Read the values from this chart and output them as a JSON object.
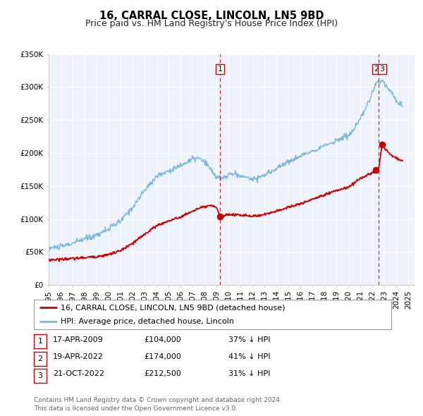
{
  "title": "16, CARRAL CLOSE, LINCOLN, LN5 9BD",
  "subtitle": "Price paid vs. HM Land Registry's House Price Index (HPI)",
  "background_color": "#ffffff",
  "plot_bg_color": "#edf2fb",
  "grid_color": "#ffffff",
  "red_line_color": "#cc0000",
  "blue_line_color": "#7ab8d9",
  "xmin": 1995.0,
  "xmax": 2025.5,
  "ymin": 0,
  "ymax": 350000,
  "yticks": [
    0,
    50000,
    100000,
    150000,
    200000,
    250000,
    300000,
    350000
  ],
  "ytick_labels": [
    "£0",
    "£50K",
    "£100K",
    "£150K",
    "£200K",
    "£250K",
    "£300K",
    "£350K"
  ],
  "sale_dates": [
    2009.292,
    2022.292,
    2022.806
  ],
  "sale_prices": [
    104000,
    174000,
    212500
  ],
  "sale_labels": [
    "1",
    "2",
    "3"
  ],
  "vline_dates": [
    2009.292,
    2022.5
  ],
  "legend_entries": [
    "16, CARRAL CLOSE, LINCOLN, LN5 9BD (detached house)",
    "HPI: Average price, detached house, Lincoln"
  ],
  "table_rows": [
    [
      "1",
      "17-APR-2009",
      "£104,000",
      "37% ↓ HPI"
    ],
    [
      "2",
      "19-APR-2022",
      "£174,000",
      "41% ↓ HPI"
    ],
    [
      "3",
      "21-OCT-2022",
      "£212,500",
      "31% ↓ HPI"
    ]
  ],
  "footnote": "Contains HM Land Registry data © Crown copyright and database right 2024.\nThis data is licensed under the Open Government Licence v3.0.",
  "title_fontsize": 10.5,
  "subtitle_fontsize": 9,
  "tick_fontsize": 7.5,
  "legend_fontsize": 8,
  "table_fontsize": 8,
  "footnote_fontsize": 6.5
}
